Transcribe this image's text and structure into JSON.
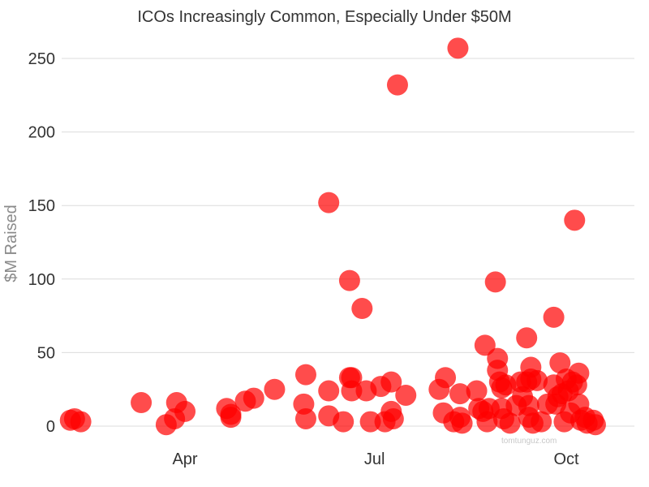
{
  "chart_data": {
    "type": "scatter",
    "title": "ICOs Increasingly Common, Especially Under $50M",
    "xlabel": "",
    "ylabel": "$M Raised",
    "x_ticks": [
      "Apr",
      "Jul",
      "Oct"
    ],
    "y_ticks": [
      0,
      50,
      100,
      150,
      200,
      250
    ],
    "ylim": [
      0,
      260
    ],
    "xlim": [
      "2017-01-25",
      "2017-11-14"
    ],
    "grid": true,
    "grid_axis": "y",
    "legend": "none",
    "marker_color": "#ff0000",
    "marker_opacity": 0.7,
    "watermark": "tomtunguz.com",
    "points": [
      {
        "x": "2017-02-05",
        "y": 4
      },
      {
        "x": "2017-02-07",
        "y": 5
      },
      {
        "x": "2017-02-10",
        "y": 3
      },
      {
        "x": "2017-03-11",
        "y": 16
      },
      {
        "x": "2017-03-23",
        "y": 1
      },
      {
        "x": "2017-03-27",
        "y": 5
      },
      {
        "x": "2017-03-28",
        "y": 16
      },
      {
        "x": "2017-04-01",
        "y": 10
      },
      {
        "x": "2017-04-21",
        "y": 12
      },
      {
        "x": "2017-04-23",
        "y": 6
      },
      {
        "x": "2017-04-23",
        "y": 8
      },
      {
        "x": "2017-04-30",
        "y": 17
      },
      {
        "x": "2017-05-04",
        "y": 19
      },
      {
        "x": "2017-05-14",
        "y": 25
      },
      {
        "x": "2017-05-29",
        "y": 35
      },
      {
        "x": "2017-05-28",
        "y": 15
      },
      {
        "x": "2017-05-29",
        "y": 5
      },
      {
        "x": "2017-06-09",
        "y": 152
      },
      {
        "x": "2017-06-09",
        "y": 24
      },
      {
        "x": "2017-06-09",
        "y": 7
      },
      {
        "x": "2017-06-16",
        "y": 3
      },
      {
        "x": "2017-06-19",
        "y": 99
      },
      {
        "x": "2017-06-19",
        "y": 33
      },
      {
        "x": "2017-06-20",
        "y": 33
      },
      {
        "x": "2017-06-20",
        "y": 24
      },
      {
        "x": "2017-06-25",
        "y": 80
      },
      {
        "x": "2017-06-27",
        "y": 24
      },
      {
        "x": "2017-06-29",
        "y": 3
      },
      {
        "x": "2017-07-04",
        "y": 27
      },
      {
        "x": "2017-07-06",
        "y": 3
      },
      {
        "x": "2017-07-09",
        "y": 30
      },
      {
        "x": "2017-07-09",
        "y": 10
      },
      {
        "x": "2017-07-10",
        "y": 5
      },
      {
        "x": "2017-07-12",
        "y": 232
      },
      {
        "x": "2017-07-16",
        "y": 21
      },
      {
        "x": "2017-08-01",
        "y": 25
      },
      {
        "x": "2017-08-03",
        "y": 9
      },
      {
        "x": "2017-08-04",
        "y": 33
      },
      {
        "x": "2017-08-08",
        "y": 3
      },
      {
        "x": "2017-08-10",
        "y": 257
      },
      {
        "x": "2017-08-11",
        "y": 22
      },
      {
        "x": "2017-08-11",
        "y": 6
      },
      {
        "x": "2017-08-12",
        "y": 2
      },
      {
        "x": "2017-08-19",
        "y": 24
      },
      {
        "x": "2017-08-20",
        "y": 12
      },
      {
        "x": "2017-08-22",
        "y": 10
      },
      {
        "x": "2017-08-23",
        "y": 55
      },
      {
        "x": "2017-08-24",
        "y": 3
      },
      {
        "x": "2017-08-25",
        "y": 12
      },
      {
        "x": "2017-08-28",
        "y": 98
      },
      {
        "x": "2017-08-29",
        "y": 46
      },
      {
        "x": "2017-08-29",
        "y": 38
      },
      {
        "x": "2017-08-30",
        "y": 30
      },
      {
        "x": "2017-08-31",
        "y": 26
      },
      {
        "x": "2017-08-31",
        "y": 12
      },
      {
        "x": "2017-09-01",
        "y": 5
      },
      {
        "x": "2017-09-02",
        "y": 28
      },
      {
        "x": "2017-09-04",
        "y": 2
      },
      {
        "x": "2017-09-07",
        "y": 14
      },
      {
        "x": "2017-09-09",
        "y": 30
      },
      {
        "x": "2017-09-10",
        "y": 20
      },
      {
        "x": "2017-09-12",
        "y": 60
      },
      {
        "x": "2017-09-12",
        "y": 30
      },
      {
        "x": "2017-09-13",
        "y": 14
      },
      {
        "x": "2017-09-13",
        "y": 6
      },
      {
        "x": "2017-09-14",
        "y": 40
      },
      {
        "x": "2017-09-14",
        "y": 32
      },
      {
        "x": "2017-09-15",
        "y": 2
      },
      {
        "x": "2017-09-17",
        "y": 31
      },
      {
        "x": "2017-09-19",
        "y": 3
      },
      {
        "x": "2017-09-22",
        "y": 15
      },
      {
        "x": "2017-09-25",
        "y": 74
      },
      {
        "x": "2017-09-25",
        "y": 28
      },
      {
        "x": "2017-09-26",
        "y": 15
      },
      {
        "x": "2017-09-27",
        "y": 20
      },
      {
        "x": "2017-09-28",
        "y": 43
      },
      {
        "x": "2017-09-29",
        "y": 22
      },
      {
        "x": "2017-09-30",
        "y": 3
      },
      {
        "x": "2017-10-01",
        "y": 32
      },
      {
        "x": "2017-10-02",
        "y": 24
      },
      {
        "x": "2017-10-03",
        "y": 9
      },
      {
        "x": "2017-10-04",
        "y": 30
      },
      {
        "x": "2017-10-05",
        "y": 140
      },
      {
        "x": "2017-10-06",
        "y": 28
      },
      {
        "x": "2017-10-07",
        "y": 36
      },
      {
        "x": "2017-10-07",
        "y": 15
      },
      {
        "x": "2017-10-08",
        "y": 4
      },
      {
        "x": "2017-10-10",
        "y": 6
      },
      {
        "x": "2017-10-11",
        "y": 2
      },
      {
        "x": "2017-10-14",
        "y": 4
      },
      {
        "x": "2017-10-15",
        "y": 1
      }
    ]
  }
}
